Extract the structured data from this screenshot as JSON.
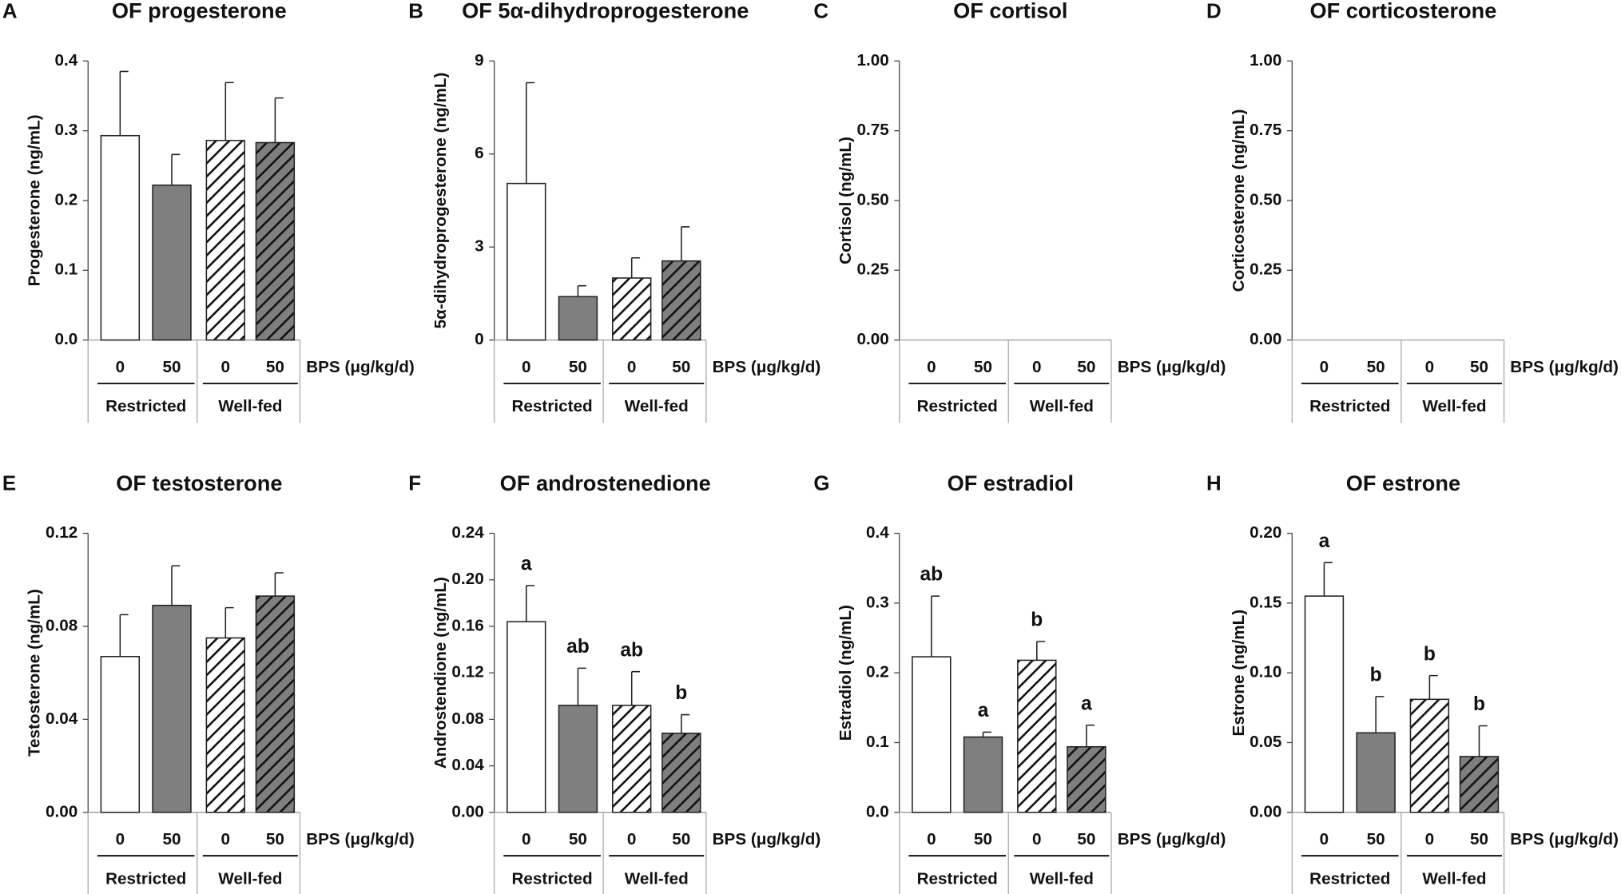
{
  "chart_data": [
    {
      "type": "bar",
      "panel": "A",
      "title": "OF progesterone",
      "ylabel": "Progesterone (ng/mL)",
      "xlabel": "BPS (μg/kg/d)",
      "categories": [
        "0",
        "50",
        "0",
        "50"
      ],
      "groups": [
        "Restricted",
        "Well-fed"
      ],
      "values": [
        0.293,
        0.222,
        0.286,
        0.283
      ],
      "errors": [
        0.092,
        0.044,
        0.083,
        0.064
      ],
      "colors": [
        "#ffffff",
        "#7f7f7f",
        "#ffffff",
        "#7f7f7f"
      ],
      "hatch": [
        false,
        false,
        true,
        true
      ],
      "ylim": [
        0,
        0.4
      ],
      "yticks": [
        {
          "value": 0,
          "label": "0.0"
        },
        0.1,
        0.2,
        0.3,
        0.4
      ]
    },
    {
      "type": "bar",
      "panel": "B",
      "title": "OF 5α-dihydroprogesterone",
      "ylabel": "5α-dihydroprogesterone (ng/mL)",
      "xlabel": "BPS (μg/kg/d)",
      "categories": [
        "0",
        "50",
        "0",
        "50"
      ],
      "groups": [
        "Restricted",
        "Well-fed"
      ],
      "values": [
        5.05,
        1.4,
        2.0,
        2.55
      ],
      "errors": [
        3.25,
        0.35,
        0.65,
        1.1
      ],
      "colors": [
        "#ffffff",
        "#7f7f7f",
        "#ffffff",
        "#7f7f7f"
      ],
      "hatch": [
        false,
        false,
        true,
        true
      ],
      "ylim": [
        0,
        9
      ],
      "yticks": [
        0,
        3,
        6,
        9
      ]
    },
    {
      "type": "bar",
      "panel": "C",
      "title": "OF cortisol",
      "ylabel": "Cortisol (ng/mL)",
      "xlabel": "BPS (μg/kg/d)",
      "categories": [
        "0",
        "50",
        "0",
        "50"
      ],
      "groups": [
        "Restricted",
        "Well-fed"
      ],
      "values": [
        null,
        null,
        null,
        null
      ],
      "colors": [
        "#ffffff",
        "#7f7f7f",
        "#ffffff",
        "#7f7f7f"
      ],
      "hatch": [
        false,
        false,
        true,
        true
      ],
      "ylim": [
        0,
        1
      ],
      "yticks": [
        {
          "value": 0,
          "label": "0.00"
        },
        0.25,
        {
          "value": 0.5,
          "label": "0.50"
        },
        0.75,
        {
          "value": 1,
          "label": "1.00"
        }
      ]
    },
    {
      "type": "bar",
      "panel": "D",
      "title": "OF corticosterone",
      "ylabel": "Corticosterone (ng/mL)",
      "xlabel": "BPS (μg/kg/d)",
      "categories": [
        "0",
        "50",
        "0",
        "50"
      ],
      "groups": [
        "Restricted",
        "Well-fed"
      ],
      "values": [
        null,
        null,
        null,
        null
      ],
      "colors": [
        "#ffffff",
        "#7f7f7f",
        "#ffffff",
        "#7f7f7f"
      ],
      "hatch": [
        false,
        false,
        true,
        true
      ],
      "ylim": [
        0,
        1
      ],
      "yticks": [
        {
          "value": 0,
          "label": "0.00"
        },
        0.25,
        {
          "value": 0.5,
          "label": "0.50"
        },
        0.75,
        {
          "value": 1,
          "label": "1.00"
        }
      ]
    },
    {
      "type": "bar",
      "panel": "E",
      "title": "OF testosterone",
      "ylabel": "Testosterone (ng/mL)",
      "xlabel": "BPS (μg/kg/d)",
      "categories": [
        "0",
        "50",
        "0",
        "50"
      ],
      "groups": [
        "Restricted",
        "Well-fed"
      ],
      "values": [
        0.067,
        0.089,
        0.075,
        0.093
      ],
      "errors": [
        0.018,
        0.017,
        0.013,
        0.01
      ],
      "colors": [
        "#ffffff",
        "#7f7f7f",
        "#ffffff",
        "#7f7f7f"
      ],
      "hatch": [
        false,
        false,
        true,
        true
      ],
      "ylim": [
        0,
        0.12
      ],
      "yticks": [
        {
          "value": 0,
          "label": "0.00"
        },
        0.04,
        0.08,
        0.12
      ]
    },
    {
      "type": "bar",
      "panel": "F",
      "title": "OF androstenedione",
      "ylabel": "Androstendione (ng/mL)",
      "xlabel": "BPS (μg/kg/d)",
      "categories": [
        "0",
        "50",
        "0",
        "50"
      ],
      "groups": [
        "Restricted",
        "Well-fed"
      ],
      "values": [
        0.164,
        0.092,
        0.092,
        0.068
      ],
      "errors": [
        0.031,
        0.032,
        0.029,
        0.016
      ],
      "annotations": [
        "a",
        "ab",
        "ab",
        "b"
      ],
      "colors": [
        "#ffffff",
        "#7f7f7f",
        "#ffffff",
        "#7f7f7f"
      ],
      "hatch": [
        false,
        false,
        true,
        true
      ],
      "ylim": [
        0,
        0.24
      ],
      "yticks": [
        {
          "value": 0,
          "label": "0.00"
        },
        0.04,
        0.08,
        0.12,
        0.16,
        {
          "value": 0.2,
          "label": "0.20"
        },
        0.24
      ]
    },
    {
      "type": "bar",
      "panel": "G",
      "title": "OF estradiol",
      "ylabel": "Estradiol (ng/mL)",
      "xlabel": "BPS (μg/kg/d)",
      "categories": [
        "0",
        "50",
        "0",
        "50"
      ],
      "groups": [
        "Restricted",
        "Well-fed"
      ],
      "values": [
        0.223,
        0.108,
        0.218,
        0.094
      ],
      "errors": [
        0.087,
        0.007,
        0.027,
        0.031
      ],
      "annotations": [
        "ab",
        "a",
        "b",
        "a"
      ],
      "colors": [
        "#ffffff",
        "#7f7f7f",
        "#ffffff",
        "#7f7f7f"
      ],
      "hatch": [
        false,
        false,
        true,
        true
      ],
      "ylim": [
        0,
        0.4
      ],
      "yticks": [
        {
          "value": 0,
          "label": "0.0"
        },
        0.1,
        0.2,
        0.3,
        0.4
      ]
    },
    {
      "type": "bar",
      "panel": "H",
      "title": "OF estrone",
      "ylabel": "Estrone (ng/mL)",
      "xlabel": "BPS (μg/kg/d)",
      "categories": [
        "0",
        "50",
        "0",
        "50"
      ],
      "groups": [
        "Restricted",
        "Well-fed"
      ],
      "values": [
        0.155,
        0.057,
        0.081,
        0.04
      ],
      "errors": [
        0.024,
        0.026,
        0.017,
        0.022
      ],
      "annotations": [
        "a",
        "b",
        "b",
        "b"
      ],
      "colors": [
        "#ffffff",
        "#7f7f7f",
        "#ffffff",
        "#7f7f7f"
      ],
      "hatch": [
        false,
        false,
        true,
        true
      ],
      "ylim": [
        0,
        0.2
      ],
      "yticks": [
        {
          "value": 0,
          "label": "0.00"
        },
        0.05,
        {
          "value": 0.1,
          "label": "0.10"
        },
        0.15,
        {
          "value": 0.2,
          "label": "0.20"
        }
      ]
    }
  ]
}
